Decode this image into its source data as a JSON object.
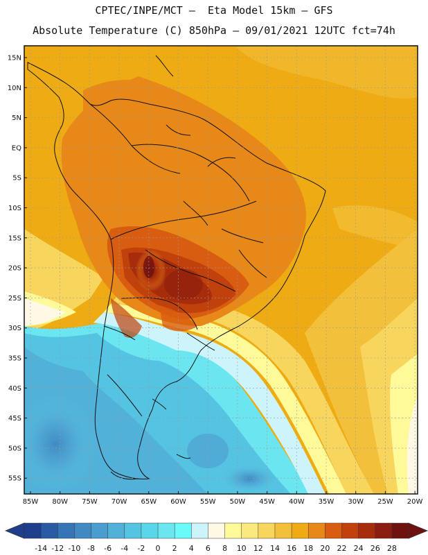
{
  "header": {
    "line1": "CPTEC/INPE/MCT –  Eta Model 15km – GFS",
    "line2": "Absolute Temperature (C) 850hPa – 09/01/2021 12UTC fct=74h"
  },
  "map": {
    "lat_labels": [
      "15N",
      "10N",
      "5N",
      "EQ",
      "5S",
      "10S",
      "15S",
      "20S",
      "25S",
      "30S",
      "35S",
      "40S",
      "45S",
      "50S",
      "55S"
    ],
    "lon_labels": [
      "85W",
      "80W",
      "75W",
      "70W",
      "65W",
      "60W",
      "55W",
      "50W",
      "45W",
      "40W",
      "35W",
      "30W",
      "25W",
      "20W"
    ]
  },
  "colorbar": {
    "labels": [
      "-14",
      "-12",
      "-10",
      "-8",
      "-6",
      "-4",
      "-2",
      "0",
      "2",
      "4",
      "6",
      "8",
      "10",
      "12",
      "14",
      "16",
      "18",
      "20",
      "22",
      "24",
      "26",
      "28"
    ],
    "colors": [
      "#1e3f8c",
      "#2a5aa3",
      "#3574b5",
      "#4289c4",
      "#4c9dcf",
      "#52b1d9",
      "#55c3e2",
      "#5ad6ea",
      "#6be6f1",
      "#6bfafa",
      "#cdf4fb",
      "#fff8e4",
      "#fefa9a",
      "#fbe980",
      "#f8d65e",
      "#f3c03c",
      "#eeab13",
      "#e78818",
      "#d95d10",
      "#c0410b",
      "#a62c0b",
      "#8a1d0f",
      "#6e1210"
    ]
  }
}
